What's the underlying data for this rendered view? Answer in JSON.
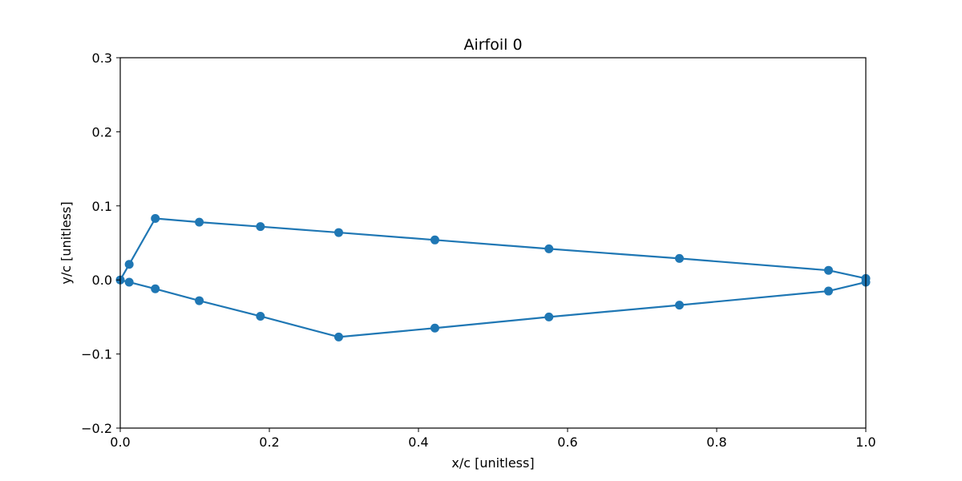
{
  "chart_data": {
    "type": "line",
    "title": "Airfoil 0",
    "xlabel": "x/c [unitless]",
    "ylabel": "y/c [unitless]",
    "xlim": [
      0.0,
      1.0
    ],
    "ylim": [
      -0.2,
      0.3
    ],
    "xticks": [
      0.0,
      0.2,
      0.4,
      0.6,
      0.8,
      1.0
    ],
    "xtick_labels": [
      "0.0",
      "0.2",
      "0.4",
      "0.6",
      "0.8",
      "1.0"
    ],
    "yticks": [
      -0.2,
      -0.1,
      0.0,
      0.1,
      0.2,
      0.3
    ],
    "ytick_labels": [
      "−0.2",
      "−0.1",
      "0.0",
      "0.1",
      "0.2",
      "0.3"
    ],
    "grid": false,
    "marker": "circle",
    "color": "#1f77b4",
    "series": [
      {
        "x": [
          1.0,
          0.95,
          0.75,
          0.575,
          0.422,
          0.293,
          0.188,
          0.106,
          0.047,
          0.012,
          0.0,
          0.012,
          0.047,
          0.106,
          0.188,
          0.293,
          0.422,
          0.575,
          0.75,
          0.95,
          1.0
        ],
        "y": [
          0.002,
          0.013,
          0.029,
          0.042,
          0.054,
          0.064,
          0.072,
          0.078,
          0.083,
          0.021,
          0.0,
          -0.003,
          -0.012,
          -0.028,
          -0.049,
          -0.077,
          -0.065,
          -0.05,
          -0.034,
          -0.015,
          -0.003
        ]
      }
    ]
  }
}
